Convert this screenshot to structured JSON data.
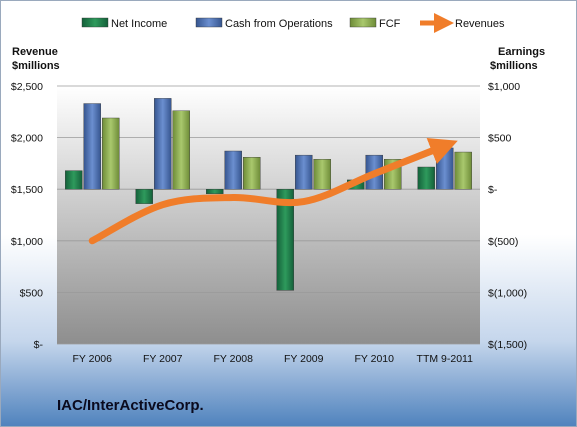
{
  "chart_data": {
    "type": "bar",
    "categories": [
      "FY 2006",
      "FY 2007",
      "FY 2008",
      "FY 2009",
      "FY 2010",
      "TTM 9-2011"
    ],
    "series": [
      {
        "name": "Net Income",
        "axis": "right",
        "values": [
          180,
          -140,
          -45,
          -980,
          90,
          215
        ],
        "color": "#1e7b45"
      },
      {
        "name": "Cash from Operations",
        "axis": "right",
        "values": [
          830,
          880,
          370,
          330,
          330,
          400
        ],
        "color": "#4a6fb5"
      },
      {
        "name": "FCF",
        "axis": "right",
        "values": [
          690,
          760,
          310,
          290,
          290,
          360
        ],
        "color": "#8caf4f"
      },
      {
        "name": "Revenues",
        "axis": "left",
        "type": "line",
        "values": [
          1000,
          1350,
          1420,
          1380,
          1650,
          1920
        ],
        "color": "#f07d2a"
      }
    ],
    "left_axis": {
      "title_line1": "Revenue",
      "title_line2": "$millions",
      "range": [
        0,
        2500
      ],
      "ticks": [
        {
          "value": 2500,
          "label": "$2,500"
        },
        {
          "value": 2000,
          "label": "$2,000"
        },
        {
          "value": 1500,
          "label": "$1,500"
        },
        {
          "value": 1000,
          "label": "$1,000"
        },
        {
          "value": 500,
          "label": "$500"
        },
        {
          "value": 0,
          "label": "$-"
        }
      ]
    },
    "right_axis": {
      "title_line1": "Earnings",
      "title_line2": "$millions",
      "range": [
        -1500,
        1000
      ],
      "ticks": [
        {
          "value": 1000,
          "label": "$1,000"
        },
        {
          "value": 500,
          "label": "$500"
        },
        {
          "value": 0,
          "label": "$-"
        },
        {
          "value": -500,
          "label": "$(500)"
        },
        {
          "value": -1000,
          "label": "$(1,000)"
        },
        {
          "value": -1500,
          "label": "$(1,500)"
        }
      ]
    },
    "legend_position": "top",
    "grid": true,
    "company": "IAC/InterActiveCorp."
  },
  "colors": {
    "background_top": "#ffffff",
    "background_bottom": "#4f82bd",
    "plot_top": "#ffffff",
    "plot_bottom": "#8e8e8e"
  }
}
